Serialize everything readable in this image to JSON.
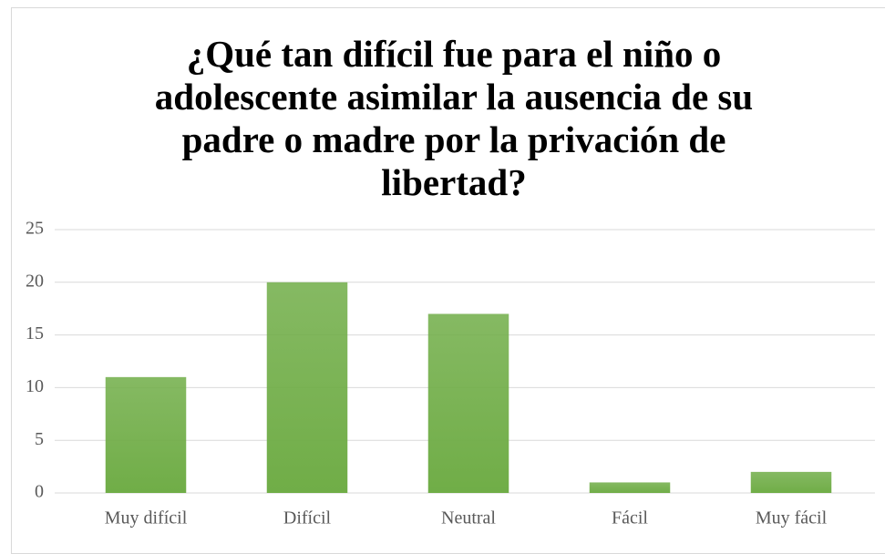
{
  "chart_data": {
    "type": "bar",
    "title": "¿Qué tan difícil fue para el niño o adolescente asimilar la ausencia de su padre o madre por la privación de libertad?",
    "categories": [
      "Muy difícil",
      "Difícil",
      "Neutral",
      "Fácil",
      "Muy fácil"
    ],
    "values": [
      11,
      20,
      17,
      1,
      2
    ],
    "color": "#70ad47",
    "ylim": [
      0,
      25
    ],
    "yticks": [
      0,
      5,
      10,
      15,
      20,
      25
    ],
    "grid": true
  }
}
